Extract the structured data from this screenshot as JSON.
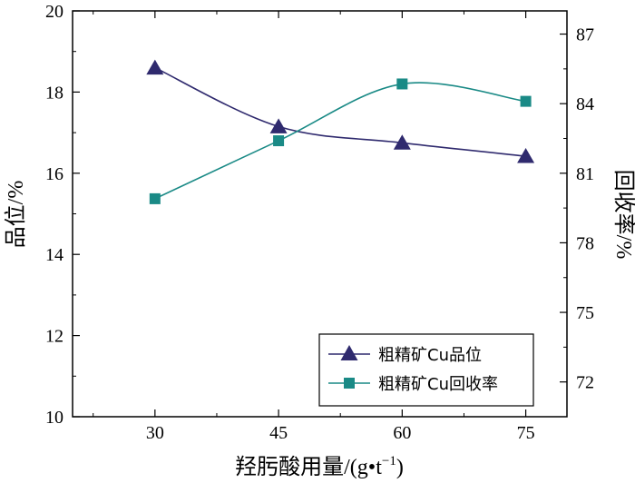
{
  "chart_data": {
    "type": "line",
    "xlabel": "羟肟酸用量/(g·t⁻¹)",
    "xlabel_main": "羟肟酸用量",
    "xlabel_unit": "/(g•t",
    "xlabel_exp": "−1",
    "xlabel_close": ")",
    "ylabel_left": "品位/%",
    "ylabel_left_main": "品位",
    "ylabel_left_unit": "/%",
    "ylabel_right": "回收率/%",
    "ylabel_right_main": "回收率",
    "ylabel_right_unit": "/%",
    "x": [
      30,
      45,
      60,
      75
    ],
    "xlim": [
      20,
      80
    ],
    "ylim_left": [
      10,
      20
    ],
    "ylim_right": [
      70.5,
      88
    ],
    "x_ticks": [
      "30",
      "45",
      "60",
      "75"
    ],
    "y_left_ticks": [
      "10",
      "12",
      "14",
      "16",
      "18",
      "20"
    ],
    "y_right_ticks": [
      "72",
      "75",
      "78",
      "81",
      "84",
      "87"
    ],
    "series": [
      {
        "name": "粗精矿Cu品位",
        "axis": "left",
        "marker": "triangle",
        "color": "#2f2a6e",
        "values": [
          18.6,
          17.15,
          16.75,
          16.42
        ]
      },
      {
        "name": "粗精矿Cu回收率",
        "axis": "right",
        "marker": "square",
        "color": "#1a8a86",
        "values": [
          79.9,
          82.4,
          84.85,
          84.1
        ]
      }
    ],
    "legend_position": "bottom-right",
    "grid": false
  }
}
